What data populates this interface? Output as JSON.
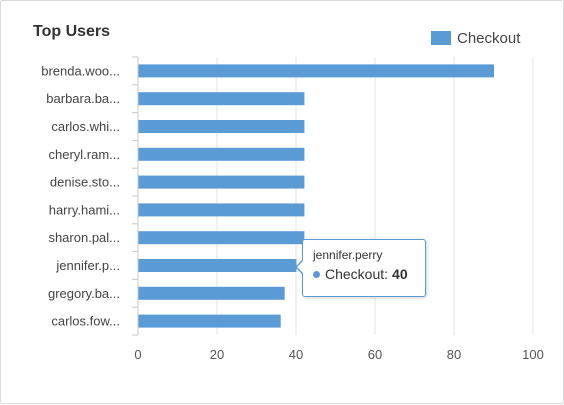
{
  "panel": {
    "title": "Top Users"
  },
  "legend": {
    "label": "Checkout",
    "color": "#5b9bd5"
  },
  "chart_data": {
    "type": "bar",
    "orientation": "horizontal",
    "title": "Top Users",
    "xlabel": "",
    "ylabel": "",
    "xlim": [
      0,
      100
    ],
    "xticks": [
      0,
      20,
      40,
      60,
      80,
      100
    ],
    "grid": true,
    "legend_position": "top-right",
    "categories": [
      "brenda.woo...",
      "barbara.ba...",
      "carlos.whi...",
      "cheryl.ram...",
      "denise.sto...",
      "harry.hami...",
      "sharon.pal...",
      "jennifer.p...",
      "gregory.ba...",
      "carlos.fow..."
    ],
    "series": [
      {
        "name": "Checkout",
        "color": "#5b9bd5",
        "values": [
          90,
          42,
          42,
          42,
          42,
          42,
          42,
          40,
          37,
          36
        ]
      }
    ]
  },
  "tooltip": {
    "name": "jennifer.perry",
    "series": "Checkout:",
    "value": "40",
    "color": "#5b9bd5"
  }
}
